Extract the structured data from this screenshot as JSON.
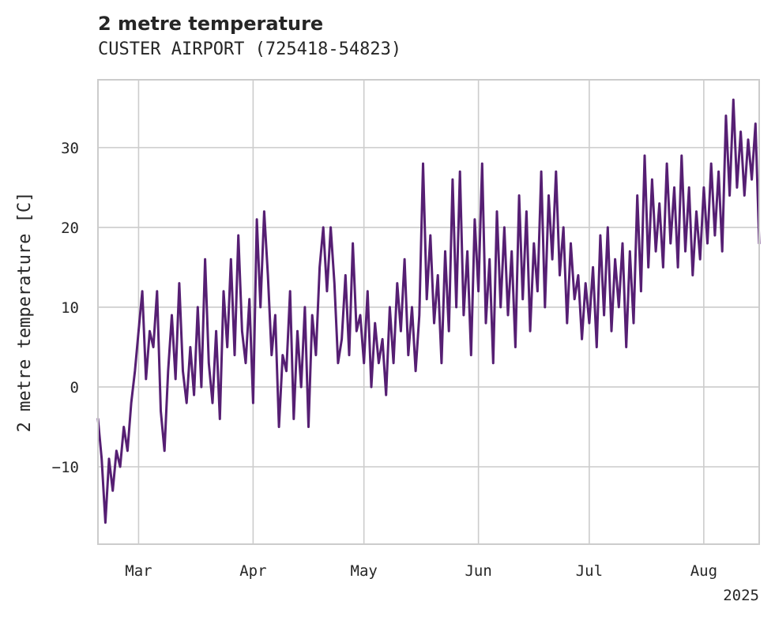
{
  "chart_data": {
    "type": "line",
    "title": "2 metre temperature",
    "subtitle": "CUSTER AIRPORT (725418-54823)",
    "xlabel": "",
    "ylabel": "2 metre temperature [C]",
    "x_range": [
      "2025-02-18",
      "2025-08-16"
    ],
    "ylim": [
      -19.7,
      38.5
    ],
    "y_ticks": [
      -10,
      0,
      10,
      20,
      30
    ],
    "x_ticks": [
      {
        "date": "2025-03-01",
        "label": "Mar"
      },
      {
        "date": "2025-04-01",
        "label": "Apr"
      },
      {
        "date": "2025-05-01",
        "label": "May"
      },
      {
        "date": "2025-06-01",
        "label": "Jun"
      },
      {
        "date": "2025-07-01",
        "label": "Jul"
      },
      {
        "date": "2025-08-01",
        "label": "Aug"
      }
    ],
    "x_offset_label": "2025",
    "grid": true,
    "line_color": "#561f73",
    "series": [
      {
        "name": "",
        "points": [
          [
            "2025-02-18",
            -4
          ],
          [
            "2025-02-19",
            -9
          ],
          [
            "2025-02-20",
            -17
          ],
          [
            "2025-02-21",
            -9
          ],
          [
            "2025-02-22",
            -13
          ],
          [
            "2025-02-23",
            -8
          ],
          [
            "2025-02-24",
            -10
          ],
          [
            "2025-02-25",
            -5
          ],
          [
            "2025-02-26",
            -8
          ],
          [
            "2025-02-27",
            -2
          ],
          [
            "2025-02-28",
            2
          ],
          [
            "2025-03-01",
            7
          ],
          [
            "2025-03-02",
            12
          ],
          [
            "2025-03-03",
            1
          ],
          [
            "2025-03-04",
            7
          ],
          [
            "2025-03-05",
            5
          ],
          [
            "2025-03-06",
            12
          ],
          [
            "2025-03-07",
            -3
          ],
          [
            "2025-03-08",
            -8
          ],
          [
            "2025-03-09",
            2
          ],
          [
            "2025-03-10",
            9
          ],
          [
            "2025-03-11",
            1
          ],
          [
            "2025-03-12",
            13
          ],
          [
            "2025-03-13",
            2
          ],
          [
            "2025-03-14",
            -2
          ],
          [
            "2025-03-15",
            5
          ],
          [
            "2025-03-16",
            -1
          ],
          [
            "2025-03-17",
            10
          ],
          [
            "2025-03-18",
            0
          ],
          [
            "2025-03-19",
            16
          ],
          [
            "2025-03-20",
            3
          ],
          [
            "2025-03-21",
            -2
          ],
          [
            "2025-03-22",
            7
          ],
          [
            "2025-03-23",
            -4
          ],
          [
            "2025-03-24",
            12
          ],
          [
            "2025-03-25",
            5
          ],
          [
            "2025-03-26",
            16
          ],
          [
            "2025-03-27",
            4
          ],
          [
            "2025-03-28",
            19
          ],
          [
            "2025-03-29",
            7
          ],
          [
            "2025-03-30",
            3
          ],
          [
            "2025-03-31",
            11
          ],
          [
            "2025-04-01",
            -2
          ],
          [
            "2025-04-02",
            21
          ],
          [
            "2025-04-03",
            10
          ],
          [
            "2025-04-04",
            22
          ],
          [
            "2025-04-05",
            14
          ],
          [
            "2025-04-06",
            4
          ],
          [
            "2025-04-07",
            9
          ],
          [
            "2025-04-08",
            -5
          ],
          [
            "2025-04-09",
            4
          ],
          [
            "2025-04-10",
            2
          ],
          [
            "2025-04-11",
            12
          ],
          [
            "2025-04-12",
            -4
          ],
          [
            "2025-04-13",
            7
          ],
          [
            "2025-04-14",
            0
          ],
          [
            "2025-04-15",
            10
          ],
          [
            "2025-04-16",
            -5
          ],
          [
            "2025-04-17",
            9
          ],
          [
            "2025-04-18",
            4
          ],
          [
            "2025-04-19",
            15
          ],
          [
            "2025-04-20",
            20
          ],
          [
            "2025-04-21",
            12
          ],
          [
            "2025-04-22",
            20
          ],
          [
            "2025-04-23",
            13
          ],
          [
            "2025-04-24",
            3
          ],
          [
            "2025-04-25",
            6
          ],
          [
            "2025-04-26",
            14
          ],
          [
            "2025-04-27",
            4
          ],
          [
            "2025-04-28",
            18
          ],
          [
            "2025-04-29",
            7
          ],
          [
            "2025-04-30",
            9
          ],
          [
            "2025-05-01",
            3
          ],
          [
            "2025-05-02",
            12
          ],
          [
            "2025-05-03",
            0
          ],
          [
            "2025-05-04",
            8
          ],
          [
            "2025-05-05",
            3
          ],
          [
            "2025-05-06",
            6
          ],
          [
            "2025-05-07",
            -1
          ],
          [
            "2025-05-08",
            10
          ],
          [
            "2025-05-09",
            3
          ],
          [
            "2025-05-10",
            13
          ],
          [
            "2025-05-11",
            7
          ],
          [
            "2025-05-12",
            16
          ],
          [
            "2025-05-13",
            4
          ],
          [
            "2025-05-14",
            10
          ],
          [
            "2025-05-15",
            2
          ],
          [
            "2025-05-16",
            9
          ],
          [
            "2025-05-17",
            28
          ],
          [
            "2025-05-18",
            11
          ],
          [
            "2025-05-19",
            19
          ],
          [
            "2025-05-20",
            8
          ],
          [
            "2025-05-21",
            14
          ],
          [
            "2025-05-22",
            3
          ],
          [
            "2025-05-23",
            17
          ],
          [
            "2025-05-24",
            7
          ],
          [
            "2025-05-25",
            26
          ],
          [
            "2025-05-26",
            10
          ],
          [
            "2025-05-27",
            27
          ],
          [
            "2025-05-28",
            9
          ],
          [
            "2025-05-29",
            17
          ],
          [
            "2025-05-30",
            4
          ],
          [
            "2025-05-31",
            21
          ],
          [
            "2025-06-01",
            12
          ],
          [
            "2025-06-02",
            28
          ],
          [
            "2025-06-03",
            8
          ],
          [
            "2025-06-04",
            16
          ],
          [
            "2025-06-05",
            3
          ],
          [
            "2025-06-06",
            22
          ],
          [
            "2025-06-07",
            10
          ],
          [
            "2025-06-08",
            20
          ],
          [
            "2025-06-09",
            9
          ],
          [
            "2025-06-10",
            17
          ],
          [
            "2025-06-11",
            5
          ],
          [
            "2025-06-12",
            24
          ],
          [
            "2025-06-13",
            11
          ],
          [
            "2025-06-14",
            22
          ],
          [
            "2025-06-15",
            7
          ],
          [
            "2025-06-16",
            18
          ],
          [
            "2025-06-17",
            12
          ],
          [
            "2025-06-18",
            27
          ],
          [
            "2025-06-19",
            10
          ],
          [
            "2025-06-20",
            24
          ],
          [
            "2025-06-21",
            16
          ],
          [
            "2025-06-22",
            27
          ],
          [
            "2025-06-23",
            14
          ],
          [
            "2025-06-24",
            20
          ],
          [
            "2025-06-25",
            8
          ],
          [
            "2025-06-26",
            18
          ],
          [
            "2025-06-27",
            11
          ],
          [
            "2025-06-28",
            14
          ],
          [
            "2025-06-29",
            6
          ],
          [
            "2025-06-30",
            13
          ],
          [
            "2025-07-01",
            8
          ],
          [
            "2025-07-02",
            15
          ],
          [
            "2025-07-03",
            5
          ],
          [
            "2025-07-04",
            19
          ],
          [
            "2025-07-05",
            9
          ],
          [
            "2025-07-06",
            20
          ],
          [
            "2025-07-07",
            7
          ],
          [
            "2025-07-08",
            16
          ],
          [
            "2025-07-09",
            10
          ],
          [
            "2025-07-10",
            18
          ],
          [
            "2025-07-11",
            5
          ],
          [
            "2025-07-12",
            17
          ],
          [
            "2025-07-13",
            8
          ],
          [
            "2025-07-14",
            24
          ],
          [
            "2025-07-15",
            12
          ],
          [
            "2025-07-16",
            29
          ],
          [
            "2025-07-17",
            15
          ],
          [
            "2025-07-18",
            26
          ],
          [
            "2025-07-19",
            17
          ],
          [
            "2025-07-20",
            23
          ],
          [
            "2025-07-21",
            15
          ],
          [
            "2025-07-22",
            28
          ],
          [
            "2025-07-23",
            18
          ],
          [
            "2025-07-24",
            25
          ],
          [
            "2025-07-25",
            15
          ],
          [
            "2025-07-26",
            29
          ],
          [
            "2025-07-27",
            17
          ],
          [
            "2025-07-28",
            25
          ],
          [
            "2025-07-29",
            14
          ],
          [
            "2025-07-30",
            22
          ],
          [
            "2025-07-31",
            16
          ],
          [
            "2025-08-01",
            25
          ],
          [
            "2025-08-02",
            18
          ],
          [
            "2025-08-03",
            28
          ],
          [
            "2025-08-04",
            19
          ],
          [
            "2025-08-05",
            27
          ],
          [
            "2025-08-06",
            17
          ],
          [
            "2025-08-07",
            34
          ],
          [
            "2025-08-08",
            24
          ],
          [
            "2025-08-09",
            36
          ],
          [
            "2025-08-10",
            25
          ],
          [
            "2025-08-11",
            32
          ],
          [
            "2025-08-12",
            24
          ],
          [
            "2025-08-13",
            31
          ],
          [
            "2025-08-14",
            26
          ],
          [
            "2025-08-15",
            33
          ],
          [
            "2025-08-16",
            18
          ]
        ]
      }
    ]
  }
}
